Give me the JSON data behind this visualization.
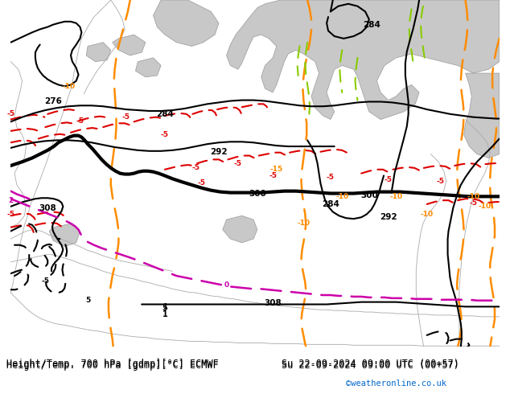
{
  "title_left": "Height/Temp. 700 hPa [gdmp][°C] ECMWF",
  "title_right": "Su 22-09-2024 09:00 UTC (00+57)",
  "credit": "©weatheronline.co.uk",
  "bg_color": "#c8e6a0",
  "fig_width": 6.34,
  "fig_height": 4.9,
  "dpi": 100
}
